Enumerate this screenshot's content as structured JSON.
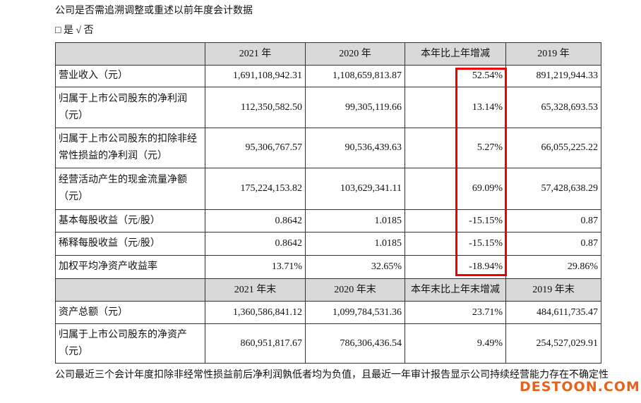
{
  "header": {
    "title": "公司是否需追溯调整或重述以前年度会计数据",
    "options": "□ 是 √ 否"
  },
  "table": {
    "header": [
      "",
      "2021 年",
      "2020 年",
      "本年比上年增减",
      "2019 年"
    ],
    "rows": [
      [
        "营业收入（元）",
        "1,691,108,942.31",
        "1,108,659,813.87",
        "52.54%",
        "891,219,944.33"
      ],
      [
        "归属于上市公司股东的净利润（元）",
        "112,350,582.50",
        "99,305,119.66",
        "13.14%",
        "65,328,693.53"
      ],
      [
        "归属于上市公司股东的扣除非经常性损益的净利润（元）",
        "95,306,767.57",
        "90,536,439.63",
        "5.27%",
        "66,055,225.22"
      ],
      [
        "经营活动产生的现金流量净额（元）",
        "175,224,153.82",
        "103,629,341.11",
        "69.09%",
        "57,428,638.29"
      ],
      [
        "基本每股收益（元/股）",
        "0.8642",
        "1.0185",
        "-15.15%",
        "0.87"
      ],
      [
        "稀释每股收益（元/股）",
        "0.8642",
        "1.0185",
        "-15.15%",
        "0.87"
      ],
      [
        "加权平均净资产收益率",
        "13.71%",
        "32.65%",
        "-18.94%",
        "29.86%"
      ]
    ],
    "header2": [
      "",
      "2021 年末",
      "2020 年末",
      "本年末比上年末增减",
      "2019 年末"
    ],
    "rows2": [
      [
        "资产总额（元）",
        "1,360,586,841.12",
        "1,099,784,531.36",
        "23.71%",
        "484,611,735.47"
      ],
      [
        "归属于上市公司股东的净资产（元）",
        "860,951,817.67",
        "786,306,436.54",
        "9.49%",
        "254,527,029.91"
      ]
    ]
  },
  "footer": "公司最近三个会计年度扣除非经常性损益前后净利润孰低者均为负值，且最近一年审计报告显示公司持续经营能力存在不确定性",
  "watermark": "DESTOON.COM"
}
